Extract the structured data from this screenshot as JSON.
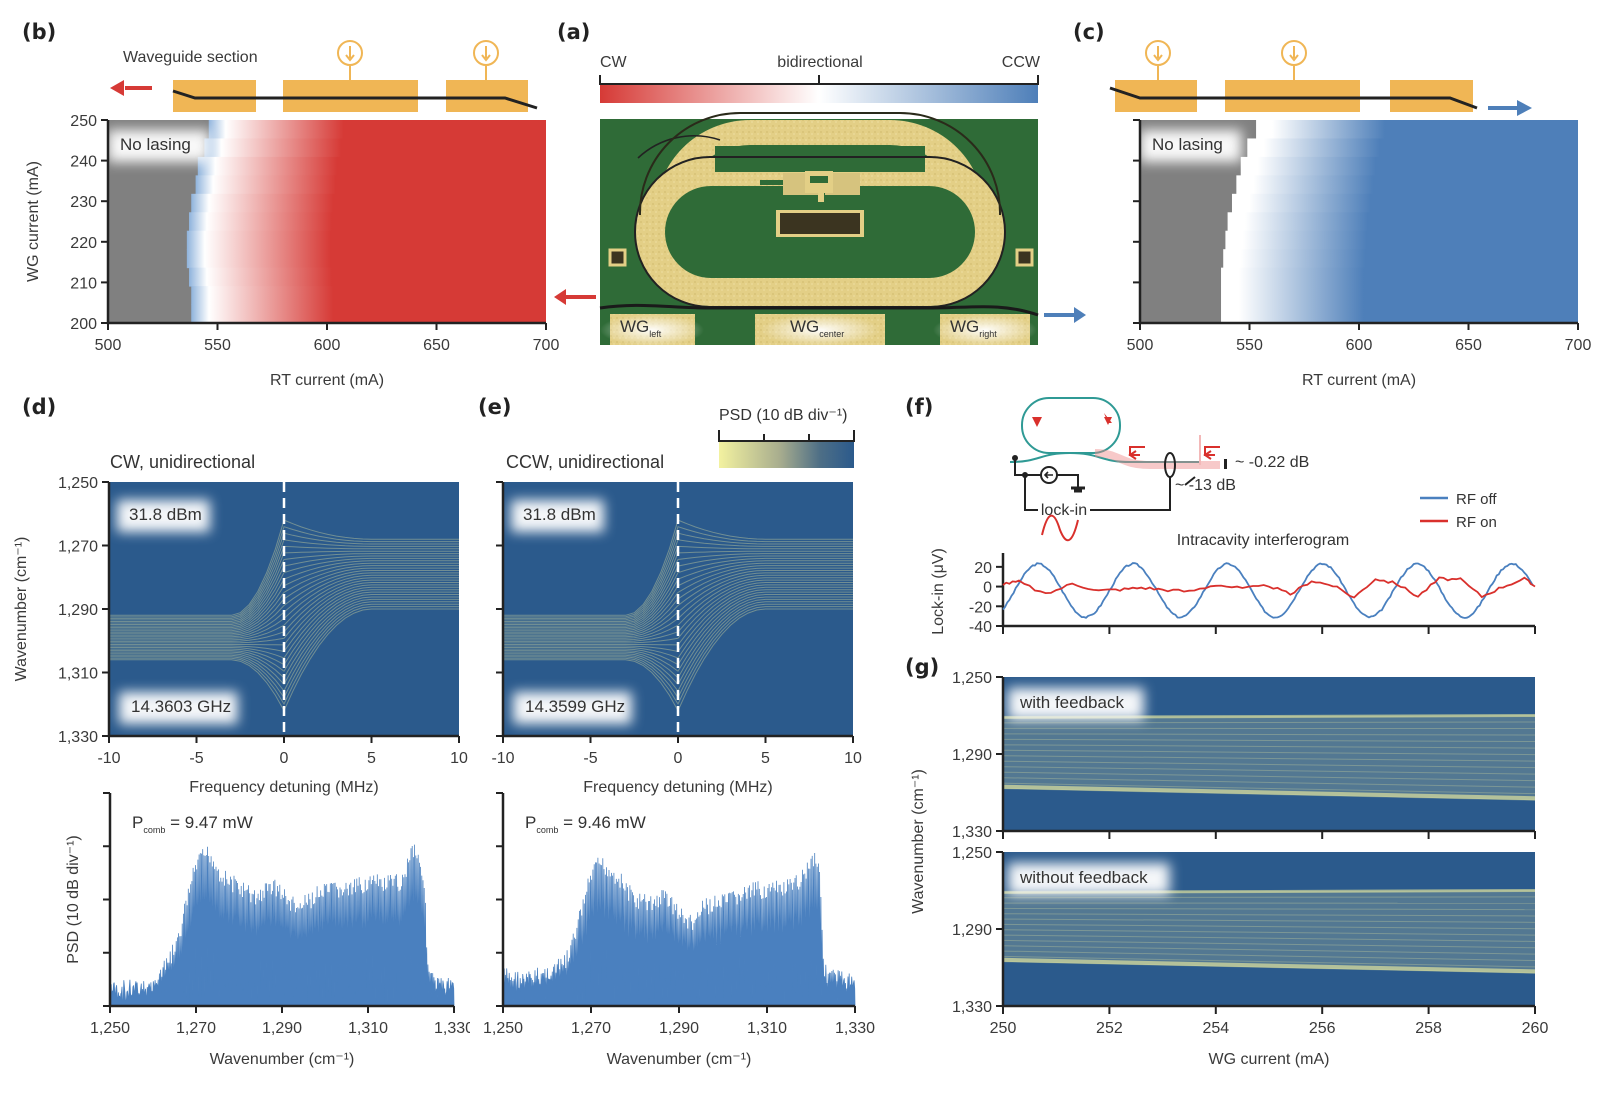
{
  "panel_labels": {
    "a": "(a)",
    "b": "(b)",
    "c": "(c)",
    "d": "(d)",
    "e": "(e)",
    "f": "(f)",
    "g": "(g)"
  },
  "colors": {
    "cw_red": "#d63a36",
    "ccw_blue": "#4e7fb9",
    "no_lasing_gray": "#808080",
    "contact_orange": "#f0b655",
    "psd_dark": "#2b5a8c",
    "psd_light": "#f3f2a0",
    "trace_blue": "#4a80bf",
    "trace_red": "#d9302c",
    "ring_teal": "#2f9a95"
  },
  "panel_a": {
    "colorbar_left": "CW",
    "colorbar_center": "bidirectional",
    "colorbar_right": "CCW",
    "photo_labels": [
      {
        "base": "WG",
        "sub": "left"
      },
      {
        "base": "WG",
        "sub": "center"
      },
      {
        "base": "WG",
        "sub": "right"
      }
    ]
  },
  "chart_data": [
    {
      "id": "b",
      "type": "heatmap",
      "title": "",
      "schematic_label": "Waveguide section",
      "annotation": "No lasing",
      "xlabel": "RT current (mA)",
      "ylabel": "WG current (mA)",
      "xlim": [
        500,
        700
      ],
      "ylim": [
        200,
        250
      ],
      "xticks": [
        "500",
        "550",
        "600",
        "650",
        "700"
      ],
      "yticks": [
        "200",
        "210",
        "220",
        "230",
        "240",
        "250"
      ],
      "dominant_state": "CW",
      "rows": [
        {
          "wg": 250,
          "threshold": 546
        },
        {
          "wg": 245,
          "threshold": 544
        },
        {
          "wg": 240,
          "threshold": 541
        },
        {
          "wg": 235,
          "threshold": 540
        },
        {
          "wg": 230,
          "threshold": 538
        },
        {
          "wg": 225,
          "threshold": 537
        },
        {
          "wg": 220,
          "threshold": 536
        },
        {
          "wg": 215,
          "threshold": 536
        },
        {
          "wg": 210,
          "threshold": 537
        },
        {
          "wg": 205,
          "threshold": 538
        },
        {
          "wg": 200,
          "threshold": 538
        }
      ]
    },
    {
      "id": "c",
      "type": "heatmap",
      "annotation": "No lasing",
      "xlabel": "RT current (mA)",
      "ylabel": "",
      "xlim": [
        500,
        700
      ],
      "ylim": [
        200,
        250
      ],
      "xticks": [
        "500",
        "550",
        "600",
        "650",
        "700"
      ],
      "dominant_state": "CCW",
      "rows": [
        {
          "wg": 250,
          "threshold": 553
        },
        {
          "wg": 245,
          "threshold": 549
        },
        {
          "wg": 240,
          "threshold": 546
        },
        {
          "wg": 235,
          "threshold": 544
        },
        {
          "wg": 230,
          "threshold": 542
        },
        {
          "wg": 225,
          "threshold": 540
        },
        {
          "wg": 220,
          "threshold": 539
        },
        {
          "wg": 215,
          "threshold": 538
        },
        {
          "wg": 210,
          "threshold": 537
        },
        {
          "wg": 205,
          "threshold": 537
        },
        {
          "wg": 200,
          "threshold": 537
        }
      ]
    },
    {
      "id": "d_top",
      "type": "heatmap",
      "title": "CW, unidirectional",
      "annotations": [
        "31.8 dBm",
        "14.3603 GHz"
      ],
      "xlabel": "Frequency detuning (MHz)",
      "ylabel": "Wavenumber (cm⁻¹)",
      "xlim": [
        -10,
        10
      ],
      "ylim": [
        1250,
        1330
      ],
      "xticks": [
        "-10",
        "-5",
        "0",
        "5",
        "10"
      ],
      "yticks": [
        "1,250",
        "1,270",
        "1,290",
        "1,310",
        "1,330"
      ],
      "marker_x": 0
    },
    {
      "id": "e_top",
      "type": "heatmap",
      "title": "CCW, unidirectional",
      "annotations": [
        "31.8 dBm",
        "14.3599 GHz"
      ],
      "colorbar_label": "PSD (10 dB div⁻¹)",
      "xlabel": "Frequency detuning (MHz)",
      "xlim": [
        -10,
        10
      ],
      "ylim": [
        1250,
        1330
      ],
      "xticks": [
        "-10",
        "-5",
        "0",
        "5",
        "10"
      ],
      "marker_x": 0
    },
    {
      "id": "d_bottom",
      "type": "area",
      "annotation": {
        "prefix": "P",
        "sub": "comb",
        "suffix": " = 9.47 mW"
      },
      "xlabel": "Wavenumber (cm⁻¹)",
      "ylabel": "PSD (10 dB div⁻¹)",
      "xlim": [
        1250,
        1330
      ],
      "ylim_div": [
        0,
        4
      ],
      "xticks": [
        "1,250",
        "1,270",
        "1,290",
        "1,310",
        "1,330"
      ],
      "envelope": {
        "x": [
          1250,
          1255,
          1260,
          1263,
          1266,
          1268,
          1270,
          1272,
          1273,
          1276,
          1280,
          1284,
          1288,
          1292,
          1294,
          1298,
          1302,
          1306,
          1310,
          1314,
          1318,
          1320,
          1321,
          1323,
          1324,
          1326,
          1330
        ],
        "y": [
          0.45,
          0.4,
          0.55,
          0.9,
          1.4,
          2.2,
          2.8,
          3.0,
          3.05,
          2.6,
          2.4,
          2.2,
          2.45,
          2.1,
          2.0,
          2.25,
          2.35,
          2.35,
          2.5,
          2.45,
          2.5,
          3.1,
          3.15,
          2.6,
          0.8,
          0.55,
          0.55
        ]
      }
    },
    {
      "id": "e_bottom",
      "type": "area",
      "annotation": {
        "prefix": "P",
        "sub": "comb",
        "suffix": " = 9.46 mW"
      },
      "xlabel": "Wavenumber (cm⁻¹)",
      "xlim": [
        1250,
        1330
      ],
      "ylim_div": [
        0,
        4
      ],
      "xticks": [
        "1,250",
        "1,270",
        "1,290",
        "1,310",
        "1,330"
      ],
      "envelope": {
        "x": [
          1250,
          1255,
          1260,
          1263,
          1265,
          1268,
          1270,
          1272,
          1273,
          1276,
          1280,
          1284,
          1287,
          1290,
          1293,
          1296,
          1300,
          1304,
          1308,
          1312,
          1316,
          1318,
          1320,
          1321,
          1322,
          1323,
          1326,
          1330
        ],
        "y": [
          0.75,
          0.65,
          0.8,
          0.9,
          1.1,
          2.0,
          2.6,
          2.85,
          2.8,
          2.6,
          2.15,
          2.1,
          2.25,
          1.9,
          1.7,
          2.05,
          2.1,
          2.25,
          2.35,
          2.35,
          2.4,
          2.6,
          2.9,
          3.0,
          2.7,
          0.8,
          0.7,
          0.6
        ]
      }
    },
    {
      "id": "f",
      "type": "line",
      "title": "Intracavity interferogram",
      "ylabel": "Lock-in (μV)",
      "ylim": [
        -40,
        30
      ],
      "yticks": [
        "20",
        "0",
        "-20",
        "-40"
      ],
      "xlim": [
        250,
        260
      ],
      "legend": "top-right",
      "series": [
        {
          "name": "RF off",
          "period": 1.78,
          "phase": -0.78,
          "offset": -4,
          "amplitude": 27
        },
        {
          "name": "RF on",
          "x": [
            250,
            250.3,
            250.8,
            251.3,
            251.8,
            252.2,
            252.6,
            253.0,
            253.5,
            254.0,
            254.5,
            255.0,
            255.4,
            255.8,
            256.2,
            256.6,
            257.0,
            257.4,
            257.8,
            258.2,
            258.6,
            259.0,
            259.4,
            259.8,
            260
          ],
          "y": [
            3,
            5,
            -8,
            3,
            -4,
            -3,
            -1,
            -3,
            -5,
            2,
            -2,
            1,
            -8,
            6,
            1,
            -11,
            8,
            3,
            -10,
            8,
            7,
            -10,
            0,
            8,
            0
          ]
        }
      ],
      "schematic_labels": {
        "loss_out": "~ -0.22 dB",
        "loss_tap": "~ -13 dB",
        "lockin": "lock-in"
      }
    },
    {
      "id": "g",
      "type": "heatmap",
      "panels": [
        {
          "annotation": "with feedback",
          "band_top_start": 1271,
          "band_top_end": 1270,
          "band_bottom_start": 1308,
          "band_bottom_end": 1314
        },
        {
          "annotation": "without feedback",
          "band_top_start": 1271,
          "band_top_end": 1270,
          "band_bottom_start": 1307,
          "band_bottom_end": 1313
        }
      ],
      "xlabel": "WG current (mA)",
      "ylabel": "Wavenumber (cm⁻¹)",
      "xlim": [
        250,
        260
      ],
      "ylim": [
        1250,
        1330
      ],
      "xticks": [
        "250",
        "252",
        "254",
        "256",
        "258",
        "260"
      ],
      "yticks": [
        "1,250",
        "1,290",
        "1,330"
      ]
    }
  ]
}
